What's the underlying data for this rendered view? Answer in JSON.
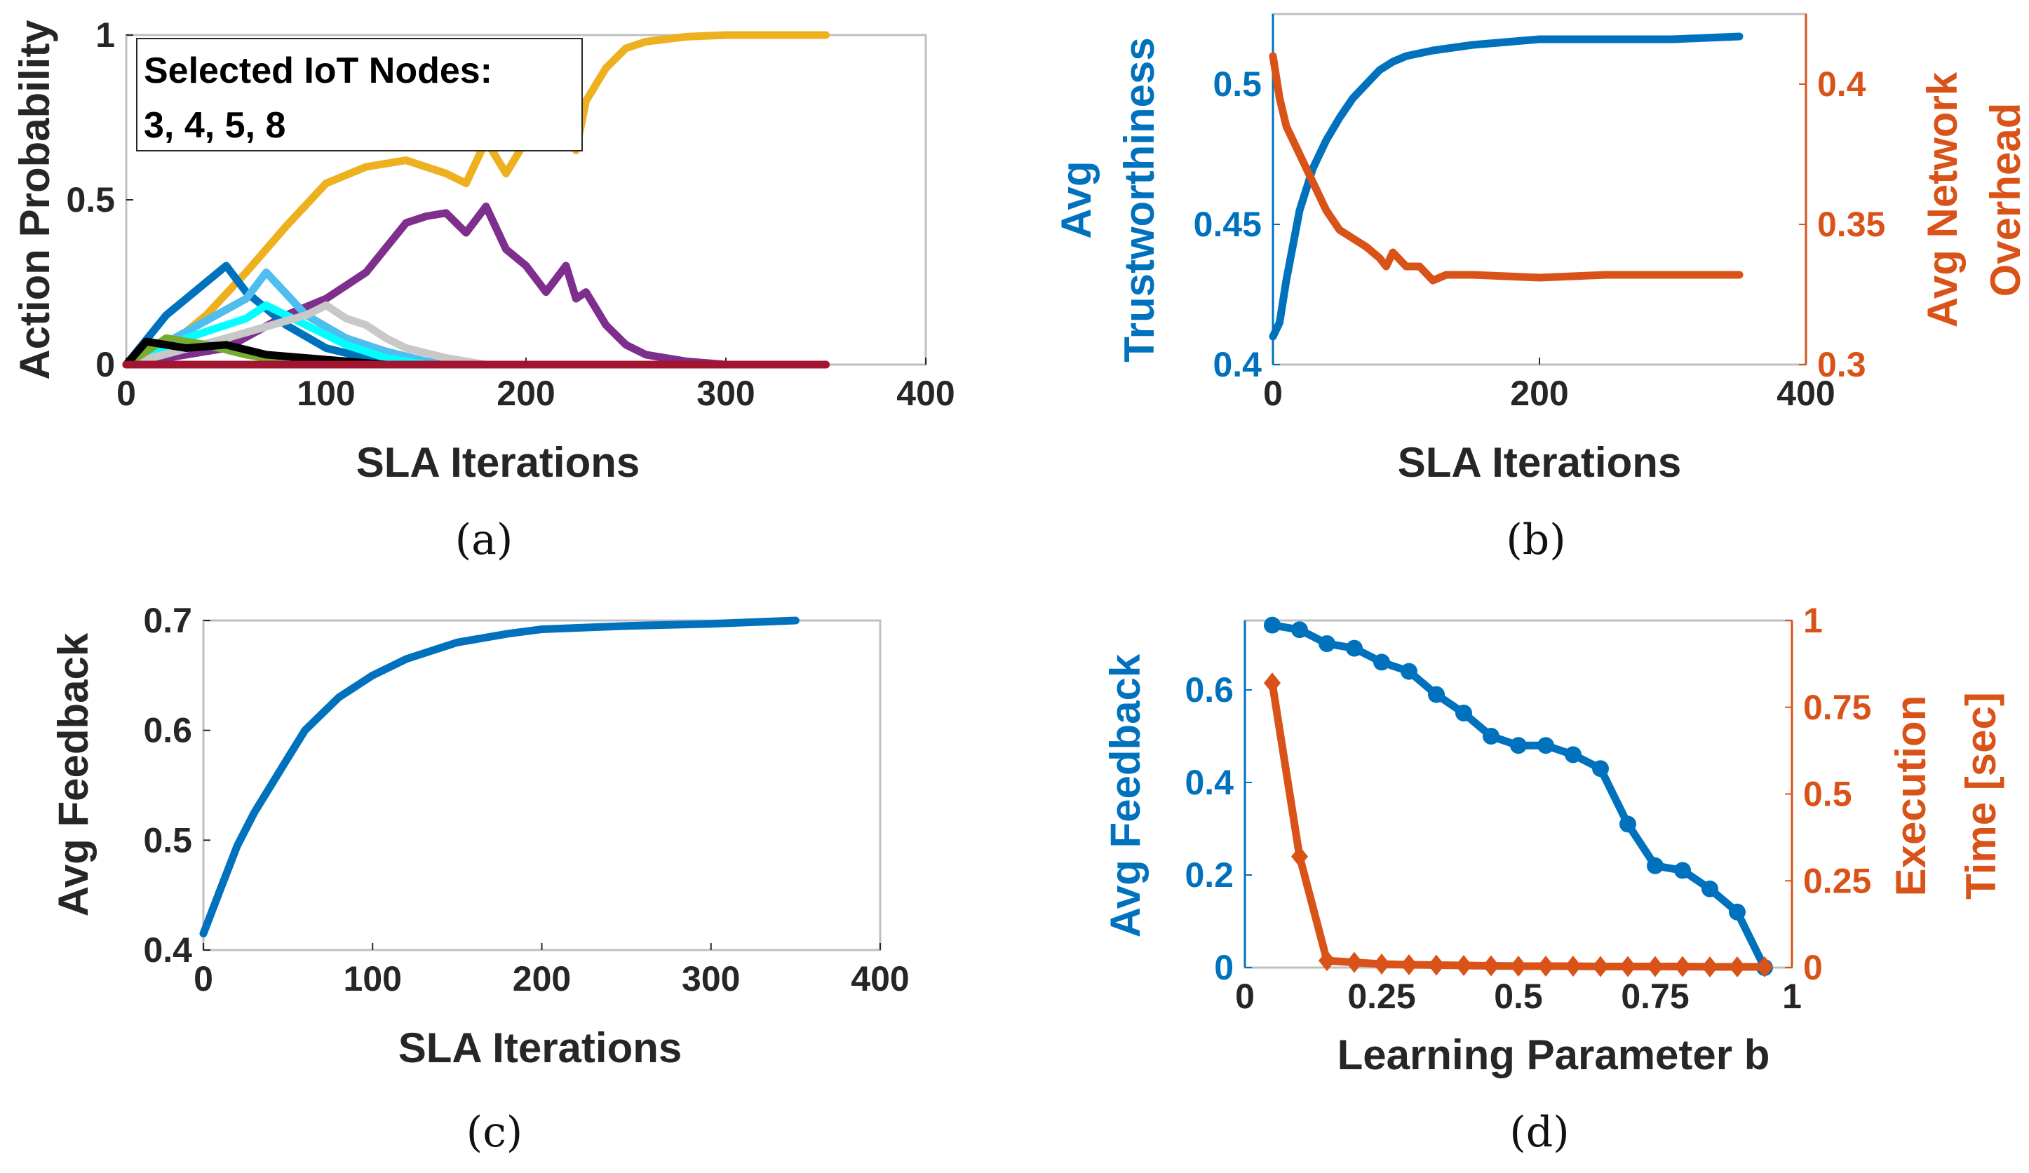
{
  "colors": {
    "blue": "#0072BD",
    "orange": "#D95319",
    "yellow": "#EDB120",
    "purple": "#7E2F8E",
    "lightblue": "#4DBEEE",
    "cyan": "#00FFFF",
    "gray": "#C8C8C8",
    "black": "#000000",
    "maroon": "#A2142F",
    "green": "#77AC30"
  },
  "chart_data": [
    {
      "id": "a",
      "caption": "(a)",
      "type": "line",
      "xlabel": "SLA Iterations",
      "ylabel": "Action Probability",
      "xlim": [
        0,
        400
      ],
      "ylim": [
        0,
        1
      ],
      "xticks": [
        "0",
        "100",
        "200",
        "300",
        "400"
      ],
      "yticks": [
        "0",
        "0.5",
        "1"
      ],
      "legend_text": [
        "Selected IoT Nodes:",
        "3, 4, 5, 8"
      ],
      "legend_position": "top-left",
      "series": [
        {
          "color": "yellow",
          "x": [
            0,
            20,
            40,
            60,
            80,
            100,
            120,
            140,
            160,
            170,
            180,
            190,
            200,
            210,
            220,
            225,
            230,
            240,
            250,
            260,
            280,
            300,
            350
          ],
          "y": [
            0,
            0.05,
            0.15,
            0.28,
            0.42,
            0.55,
            0.6,
            0.62,
            0.58,
            0.55,
            0.68,
            0.58,
            0.68,
            0.78,
            0.82,
            0.65,
            0.8,
            0.9,
            0.96,
            0.98,
            0.995,
            1,
            1
          ]
        },
        {
          "color": "purple",
          "x": [
            0,
            50,
            80,
            100,
            120,
            140,
            150,
            160,
            170,
            180,
            190,
            200,
            210,
            220,
            225,
            230,
            240,
            250,
            260,
            280,
            300,
            350
          ],
          "y": [
            0,
            0.05,
            0.15,
            0.2,
            0.28,
            0.43,
            0.45,
            0.46,
            0.4,
            0.48,
            0.35,
            0.3,
            0.22,
            0.3,
            0.2,
            0.22,
            0.12,
            0.06,
            0.03,
            0.01,
            0,
            0
          ]
        },
        {
          "color": "blue",
          "x": [
            0,
            20,
            40,
            50,
            60,
            80,
            100,
            120,
            140
          ],
          "y": [
            0,
            0.15,
            0.25,
            0.3,
            0.22,
            0.12,
            0.05,
            0.02,
            0
          ]
        },
        {
          "color": "lightblue",
          "x": [
            0,
            30,
            60,
            70,
            90,
            110,
            130,
            150,
            170
          ],
          "y": [
            0,
            0.1,
            0.2,
            0.28,
            0.15,
            0.08,
            0.04,
            0.01,
            0
          ]
        },
        {
          "color": "cyan",
          "x": [
            0,
            30,
            60,
            70,
            90,
            110,
            130,
            150
          ],
          "y": [
            0,
            0.08,
            0.14,
            0.18,
            0.12,
            0.06,
            0.02,
            0
          ]
        },
        {
          "color": "gray",
          "x": [
            0,
            50,
            90,
            100,
            110,
            120,
            130,
            140,
            160,
            180
          ],
          "y": [
            0,
            0.08,
            0.15,
            0.18,
            0.14,
            0.12,
            0.08,
            0.05,
            0.02,
            0
          ]
        },
        {
          "color": "green",
          "x": [
            0,
            20,
            40,
            60,
            80,
            100
          ],
          "y": [
            0,
            0.08,
            0.06,
            0.03,
            0.01,
            0
          ]
        },
        {
          "color": "black",
          "x": [
            0,
            10,
            30,
            50,
            70,
            90,
            110,
            130
          ],
          "y": [
            0,
            0.07,
            0.05,
            0.06,
            0.03,
            0.02,
            0.01,
            0
          ]
        },
        {
          "color": "maroon",
          "x": [
            0,
            350
          ],
          "y": [
            0,
            0
          ]
        }
      ]
    },
    {
      "id": "b",
      "caption": "(b)",
      "type": "line",
      "xlabel": "SLA Iterations",
      "ylabel": [
        "Avg",
        "Trustworthiness"
      ],
      "ylabel_right": [
        "Avg Network",
        "Overhead"
      ],
      "xlim": [
        0,
        400
      ],
      "ylim": [
        0.4,
        0.525
      ],
      "ylim_right": [
        0.3,
        0.425
      ],
      "xticks": [
        "0",
        "200",
        "400"
      ],
      "yticks": [
        "0.4",
        "0.45",
        "0.5"
      ],
      "yticks_right": [
        "0.3",
        "0.35",
        "0.4"
      ],
      "series": [
        {
          "color": "blue",
          "axis": "left",
          "x": [
            0,
            5,
            10,
            20,
            30,
            40,
            50,
            60,
            70,
            80,
            90,
            100,
            120,
            150,
            200,
            250,
            300,
            350
          ],
          "y": [
            0.41,
            0.415,
            0.43,
            0.455,
            0.47,
            0.48,
            0.488,
            0.495,
            0.5,
            0.505,
            0.508,
            0.51,
            0.512,
            0.514,
            0.516,
            0.516,
            0.516,
            0.517
          ]
        },
        {
          "color": "orange",
          "axis": "right",
          "x": [
            0,
            5,
            10,
            20,
            30,
            40,
            50,
            60,
            70,
            80,
            85,
            90,
            100,
            110,
            120,
            130,
            150,
            200,
            250,
            300,
            350
          ],
          "y": [
            0.41,
            0.395,
            0.385,
            0.375,
            0.365,
            0.355,
            0.348,
            0.345,
            0.342,
            0.338,
            0.335,
            0.34,
            0.335,
            0.335,
            0.33,
            0.332,
            0.332,
            0.331,
            0.332,
            0.332,
            0.332
          ]
        }
      ]
    },
    {
      "id": "c",
      "caption": "(c)",
      "type": "line",
      "xlabel": "SLA Iterations",
      "ylabel": "Avg Feedback",
      "xlim": [
        0,
        400
      ],
      "ylim": [
        0.4,
        0.7
      ],
      "xticks": [
        "0",
        "100",
        "200",
        "300",
        "400"
      ],
      "yticks": [
        "0.4",
        "0.5",
        "0.6",
        "0.7"
      ],
      "series": [
        {
          "color": "blue",
          "x": [
            0,
            10,
            20,
            30,
            40,
            50,
            60,
            70,
            80,
            90,
            100,
            120,
            150,
            180,
            200,
            250,
            300,
            350
          ],
          "y": [
            0.415,
            0.455,
            0.495,
            0.525,
            0.55,
            0.575,
            0.6,
            0.615,
            0.63,
            0.64,
            0.65,
            0.665,
            0.68,
            0.688,
            0.692,
            0.695,
            0.697,
            0.7
          ]
        }
      ]
    },
    {
      "id": "d",
      "caption": "(d)",
      "type": "line",
      "xlabel": "Learning Parameter b",
      "ylabel": "Avg Feedback",
      "ylabel_right": [
        "Execution",
        "Time [sec]"
      ],
      "xlim": [
        0,
        1
      ],
      "ylim": [
        0,
        0.75
      ],
      "ylim_right": [
        0,
        1
      ],
      "xticks": [
        "0",
        "0.25",
        "0.5",
        "0.75",
        "1"
      ],
      "yticks": [
        "0",
        "0.2",
        "0.4",
        "0.6"
      ],
      "yticks_right": [
        "0",
        "0.25",
        "0.5",
        "0.75",
        "1"
      ],
      "series": [
        {
          "color": "blue",
          "axis": "left",
          "marker": "circle",
          "x": [
            0.05,
            0.1,
            0.15,
            0.2,
            0.25,
            0.3,
            0.35,
            0.4,
            0.45,
            0.5,
            0.55,
            0.6,
            0.65,
            0.7,
            0.75,
            0.8,
            0.85,
            0.9,
            0.95
          ],
          "y": [
            0.74,
            0.73,
            0.7,
            0.69,
            0.66,
            0.64,
            0.59,
            0.55,
            0.5,
            0.48,
            0.48,
            0.46,
            0.43,
            0.31,
            0.22,
            0.21,
            0.17,
            0.12,
            0
          ]
        },
        {
          "color": "orange",
          "axis": "right",
          "marker": "diamond",
          "x": [
            0.05,
            0.1,
            0.15,
            0.2,
            0.25,
            0.3,
            0.35,
            0.4,
            0.45,
            0.5,
            0.55,
            0.6,
            0.65,
            0.7,
            0.75,
            0.8,
            0.85,
            0.9,
            0.95
          ],
          "y": [
            0.82,
            0.32,
            0.02,
            0.015,
            0.01,
            0.008,
            0.007,
            0.006,
            0.005,
            0.004,
            0.004,
            0.004,
            0.003,
            0.003,
            0.003,
            0.003,
            0.002,
            0.002,
            0.002
          ]
        }
      ]
    }
  ]
}
